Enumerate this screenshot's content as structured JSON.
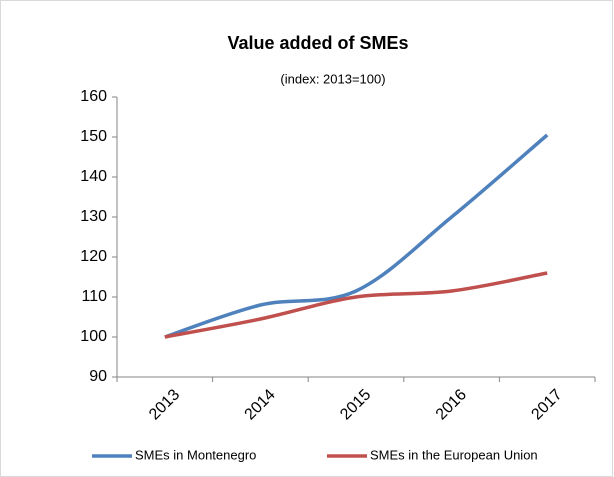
{
  "chart_data": {
    "type": "line",
    "title": "Value added of SMEs",
    "subtitle": "(index: 2013=100)",
    "categories": [
      "2013",
      "2014",
      "2015",
      "2016",
      "2017"
    ],
    "series": [
      {
        "name": "SMEs in Montenegro",
        "color": "#4f81bd",
        "values": [
          100,
          108,
          111.5,
          130,
          150.5
        ]
      },
      {
        "name": "SMEs in the European Union",
        "color": "#c0504d",
        "values": [
          100,
          104.5,
          110,
          111.5,
          116
        ]
      }
    ],
    "ylim": [
      90,
      160
    ],
    "yticks": [
      90,
      100,
      110,
      120,
      130,
      140,
      150,
      160
    ],
    "smooth": true,
    "grid": false,
    "legend": "bottom"
  }
}
